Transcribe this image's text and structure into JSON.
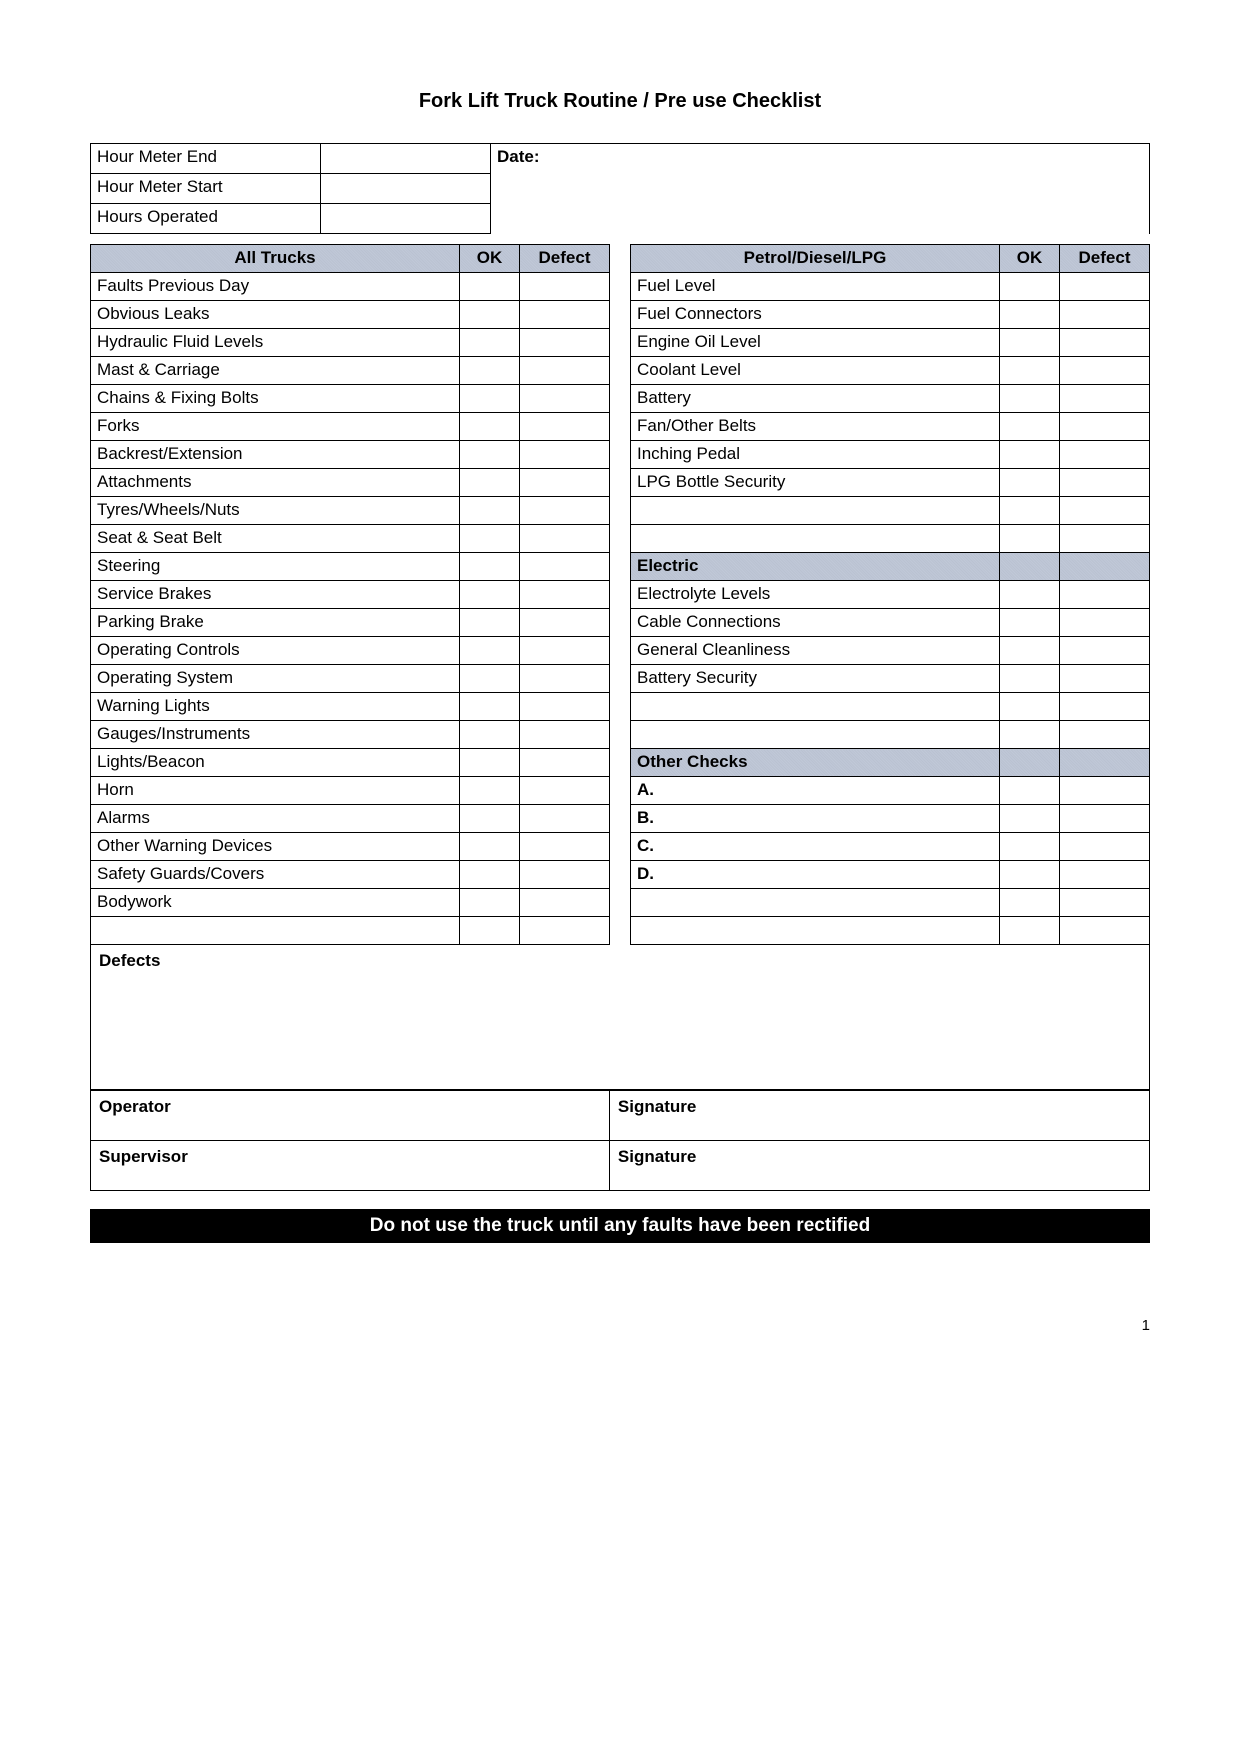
{
  "title": "Fork Lift Truck Routine / Pre use Checklist",
  "meter": {
    "rows": [
      {
        "label": "Hour Meter End"
      },
      {
        "label": "Hour Meter Start"
      },
      {
        "label": "Hours Operated"
      }
    ],
    "date_label": "Date:"
  },
  "left_table": {
    "header": {
      "item": "All Trucks",
      "ok": "OK",
      "defect": "Defect"
    },
    "rows": [
      "Faults Previous Day",
      "Obvious Leaks",
      "Hydraulic Fluid Levels",
      "Mast & Carriage",
      "Chains & Fixing Bolts",
      "Forks",
      "Backrest/Extension",
      "Attachments",
      "Tyres/Wheels/Nuts",
      "Seat & Seat Belt",
      "Steering",
      "Service Brakes",
      "Parking Brake",
      "Operating Controls",
      "Operating System",
      "Warning Lights",
      "Gauges/Instruments",
      "Lights/Beacon",
      "Horn",
      "Alarms",
      "Other Warning Devices",
      "Safety Guards/Covers",
      "Bodywork",
      ""
    ]
  },
  "right_table": {
    "sections": [
      {
        "header": {
          "item": "Petrol/Diesel/LPG",
          "ok": "OK",
          "defect": "Defect"
        },
        "rows": [
          "Fuel Level",
          "Fuel Connectors",
          "Engine Oil Level",
          "Coolant Level",
          "Battery",
          "Fan/Other Belts",
          "Inching Pedal",
          "LPG Bottle Security",
          "",
          ""
        ]
      },
      {
        "header": {
          "item": "Electric"
        },
        "rows": [
          "Electrolyte Levels",
          "Cable Connections",
          "General Cleanliness",
          "Battery Security",
          "",
          ""
        ]
      },
      {
        "header": {
          "item": "Other Checks"
        },
        "rows": [
          "A.",
          "B.",
          "C.",
          "D.",
          "",
          ""
        ]
      }
    ]
  },
  "defects_label": "Defects",
  "signatures": {
    "operator": "Operator",
    "supervisor": "Supervisor",
    "signature": "Signature"
  },
  "warning": "Do not use the truck until any faults have been rectified",
  "page_number": "1",
  "colors": {
    "header_bg": "#c0c8d8",
    "border": "#000000",
    "warning_bg": "#000000",
    "warning_fg": "#ffffff"
  }
}
